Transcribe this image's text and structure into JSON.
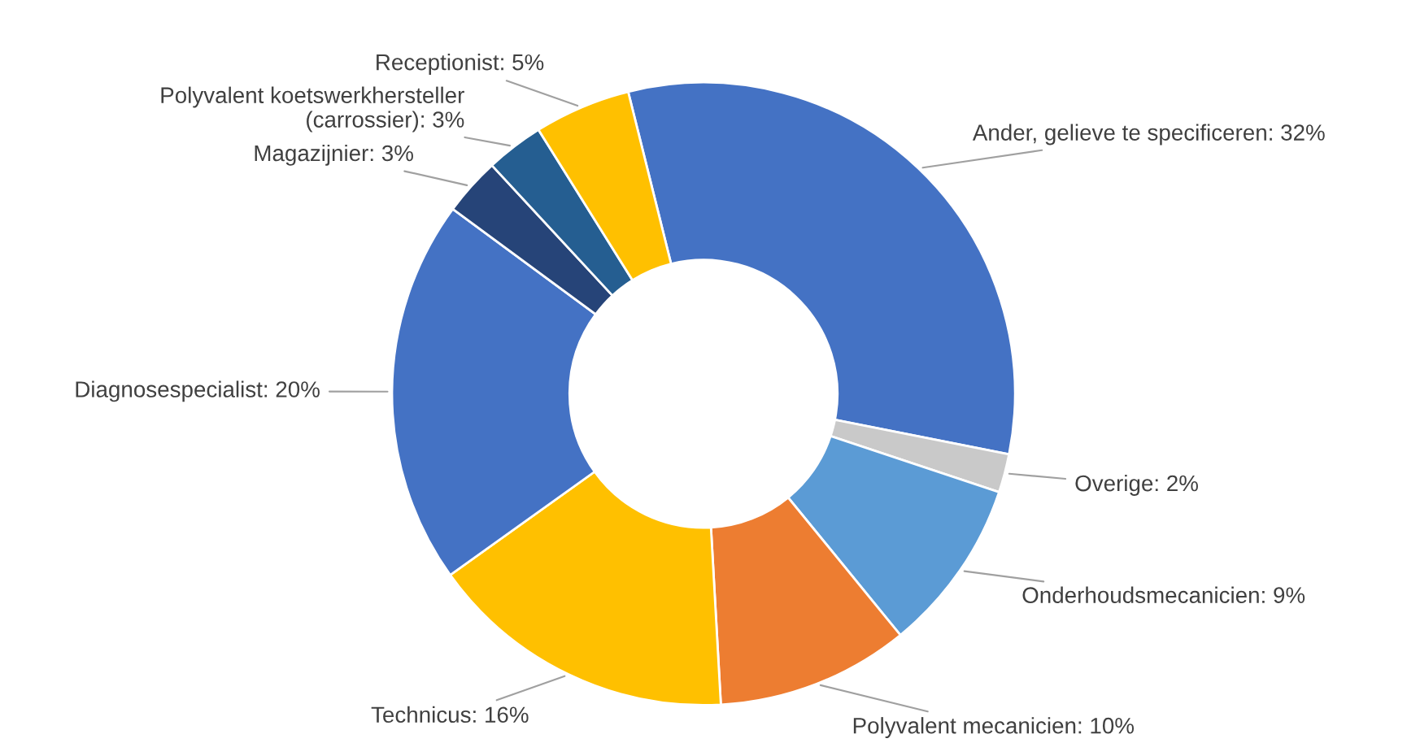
{
  "chart_data": {
    "type": "donut",
    "categories": [
      "Ander, gelieve te specificeren",
      "Overige",
      "Onderhoudsmecanicien",
      "Polyvalent mecanicien",
      "Technicus",
      "Diagnosespecialist",
      "Magazijnier",
      "Polyvalent koetswerkhersteller\n(carrossier)",
      "Receptionist"
    ],
    "values": [
      32,
      2,
      9,
      10,
      16,
      20,
      3,
      3,
      5
    ],
    "value_labels": [
      "32%",
      "2%",
      "9%",
      "10%",
      "16%",
      "20%",
      "3%",
      "3%",
      "5%"
    ],
    "colors": [
      "#4472c4",
      "#c9c9c9",
      "#5b9bd5",
      "#ed7d31",
      "#ffc000",
      "#4472c4",
      "#264478",
      "#255e91",
      "#ffc000"
    ],
    "legend": false
  }
}
